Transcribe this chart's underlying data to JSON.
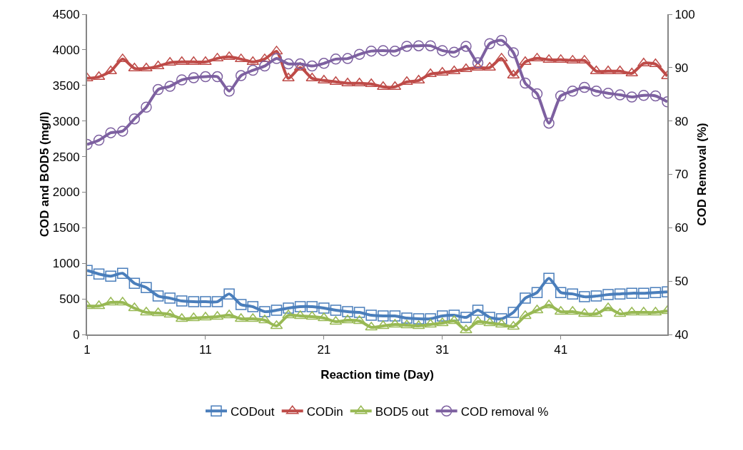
{
  "chart_data": {
    "type": "line",
    "xlabel": "Reaction time (Day)",
    "ylabel": "COD and BOD5 (mg/l)",
    "y2label": "COD Removal (%)",
    "x": [
      1,
      2,
      3,
      4,
      5,
      6,
      7,
      8,
      9,
      10,
      11,
      12,
      13,
      14,
      15,
      16,
      17,
      18,
      19,
      20,
      21,
      22,
      23,
      24,
      25,
      26,
      27,
      28,
      29,
      30,
      31,
      32,
      33,
      34,
      35,
      36,
      37,
      38,
      39,
      40,
      41,
      42,
      43,
      44,
      45,
      46,
      47,
      48,
      49,
      50
    ],
    "series": [
      {
        "name": "CODout",
        "color": "#4a7ebb",
        "marker": "square",
        "values": [
          900,
          850,
          820,
          860,
          720,
          660,
          540,
          510,
          470,
          460,
          460,
          460,
          570,
          420,
          390,
          320,
          340,
          370,
          390,
          390,
          370,
          340,
          320,
          310,
          270,
          260,
          260,
          230,
          220,
          220,
          260,
          270,
          240,
          340,
          240,
          220,
          310,
          510,
          590,
          790,
          590,
          570,
          530,
          540,
          560,
          570,
          580,
          580,
          590,
          600
        ]
      },
      {
        "name": "CODin",
        "color": "#be4b48",
        "marker": "triangle",
        "values": [
          3600,
          3620,
          3700,
          3870,
          3740,
          3740,
          3770,
          3820,
          3830,
          3830,
          3830,
          3880,
          3900,
          3870,
          3830,
          3870,
          3980,
          3600,
          3750,
          3600,
          3570,
          3550,
          3530,
          3530,
          3520,
          3480,
          3480,
          3550,
          3570,
          3660,
          3680,
          3700,
          3730,
          3750,
          3750,
          3880,
          3640,
          3830,
          3880,
          3860,
          3860,
          3850,
          3850,
          3700,
          3700,
          3700,
          3670,
          3810,
          3800,
          3630
        ]
      },
      {
        "name": "BOD5 out",
        "color": "#98b954",
        "marker": "triangle",
        "values": [
          400,
          400,
          450,
          450,
          370,
          310,
          300,
          280,
          220,
          230,
          240,
          250,
          270,
          220,
          220,
          200,
          120,
          270,
          260,
          250,
          230,
          180,
          200,
          190,
          100,
          120,
          140,
          130,
          120,
          140,
          160,
          190,
          60,
          180,
          160,
          140,
          110,
          260,
          340,
          410,
          320,
          320,
          290,
          290,
          370,
          290,
          310,
          310,
          310,
          330
        ]
      },
      {
        "name": "COD removal %",
        "color": "#7d60a0",
        "marker": "circle",
        "axis": "y2",
        "values": [
          75.6,
          76.4,
          77.8,
          78.1,
          80.4,
          82.6,
          85.9,
          86.5,
          87.7,
          88.1,
          88.3,
          88.3,
          85.6,
          88.5,
          89.5,
          90.3,
          91.7,
          90.7,
          90.7,
          90.3,
          90.8,
          91.6,
          91.7,
          92.5,
          93.1,
          93.2,
          93.1,
          94.0,
          94.1,
          94.1,
          93.2,
          92.9,
          94.0,
          90.9,
          94.5,
          95.1,
          92.8,
          87.1,
          85.1,
          79.6,
          84.7,
          85.6,
          86.3,
          85.6,
          85.2,
          84.9,
          84.5,
          84.8,
          84.7,
          83.6
        ]
      }
    ],
    "xlim": [
      1,
      50
    ],
    "xticks": [
      1,
      11,
      21,
      31,
      41
    ],
    "ylim": [
      0,
      4500
    ],
    "yticks": [
      0,
      500,
      1000,
      1500,
      2000,
      2500,
      3000,
      3500,
      4000,
      4500
    ],
    "y2lim": [
      40,
      100
    ],
    "y2ticks": [
      40,
      50,
      60,
      70,
      80,
      90,
      100
    ],
    "grid": false,
    "legend": "bottom",
    "line_style": "solid"
  }
}
